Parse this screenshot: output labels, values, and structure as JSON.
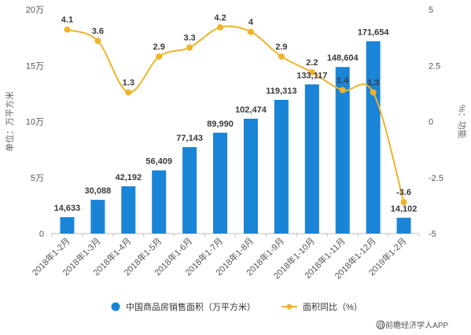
{
  "chart_data": {
    "type": "bar",
    "categories": [
      "2018年1-2月",
      "2018年1-3月",
      "2018年1-4月",
      "2018年1-5月",
      "2018年1-6月",
      "2018年1-7月",
      "2018年1-8月",
      "2018年1-9月",
      "2018年1-10月",
      "2018年1-11月",
      "2018年1-12月",
      "2019年1-2月"
    ],
    "series": [
      {
        "name": "中国商品房销售面积（万平方米）",
        "type": "bar",
        "axis": "left",
        "color": "#1a84d6",
        "values": [
          14633,
          30088,
          42192,
          56409,
          77143,
          89990,
          102474,
          119313,
          133117,
          148604,
          171654,
          14102
        ],
        "labels": [
          "14,633",
          "30,088",
          "42,192",
          "56,409",
          "77,143",
          "89,990",
          "102,474",
          "119,313",
          "133,117",
          "148,604",
          "171,654",
          "14,102"
        ]
      },
      {
        "name": "面积同比（%）",
        "type": "line",
        "axis": "right",
        "color": "#f0b32a",
        "values": [
          4.1,
          3.6,
          1.3,
          2.9,
          3.3,
          4.2,
          4.0,
          2.9,
          2.2,
          1.4,
          1.3,
          -3.6
        ],
        "labels": [
          "4.1",
          "3.6",
          "1.3",
          "2.9",
          "3.3",
          "4.2",
          "4",
          "2.9",
          "2.2",
          "1.4",
          "1.3",
          "-3.6"
        ]
      }
    ],
    "ylabel": "单位：万平方米",
    "y2label": "%：功能",
    "ylim": [
      0,
      200000
    ],
    "y2lim": [
      -5,
      5
    ],
    "yticks": [
      {
        "v": 0,
        "label": "0"
      },
      {
        "v": 50000,
        "label": "5万"
      },
      {
        "v": 100000,
        "label": "10万"
      },
      {
        "v": 150000,
        "label": "15万"
      },
      {
        "v": 200000,
        "label": "20万"
      }
    ],
    "y2ticks": [
      {
        "v": -5,
        "label": "-5"
      },
      {
        "v": -2.5,
        "label": "-2.5"
      },
      {
        "v": 0,
        "label": "0"
      },
      {
        "v": 2.5,
        "label": "2.5"
      },
      {
        "v": 5,
        "label": "5"
      }
    ],
    "grid": false,
    "legend_position": "bottom-center"
  },
  "watermark": {
    "text": "@前瞻经济学人APP"
  }
}
